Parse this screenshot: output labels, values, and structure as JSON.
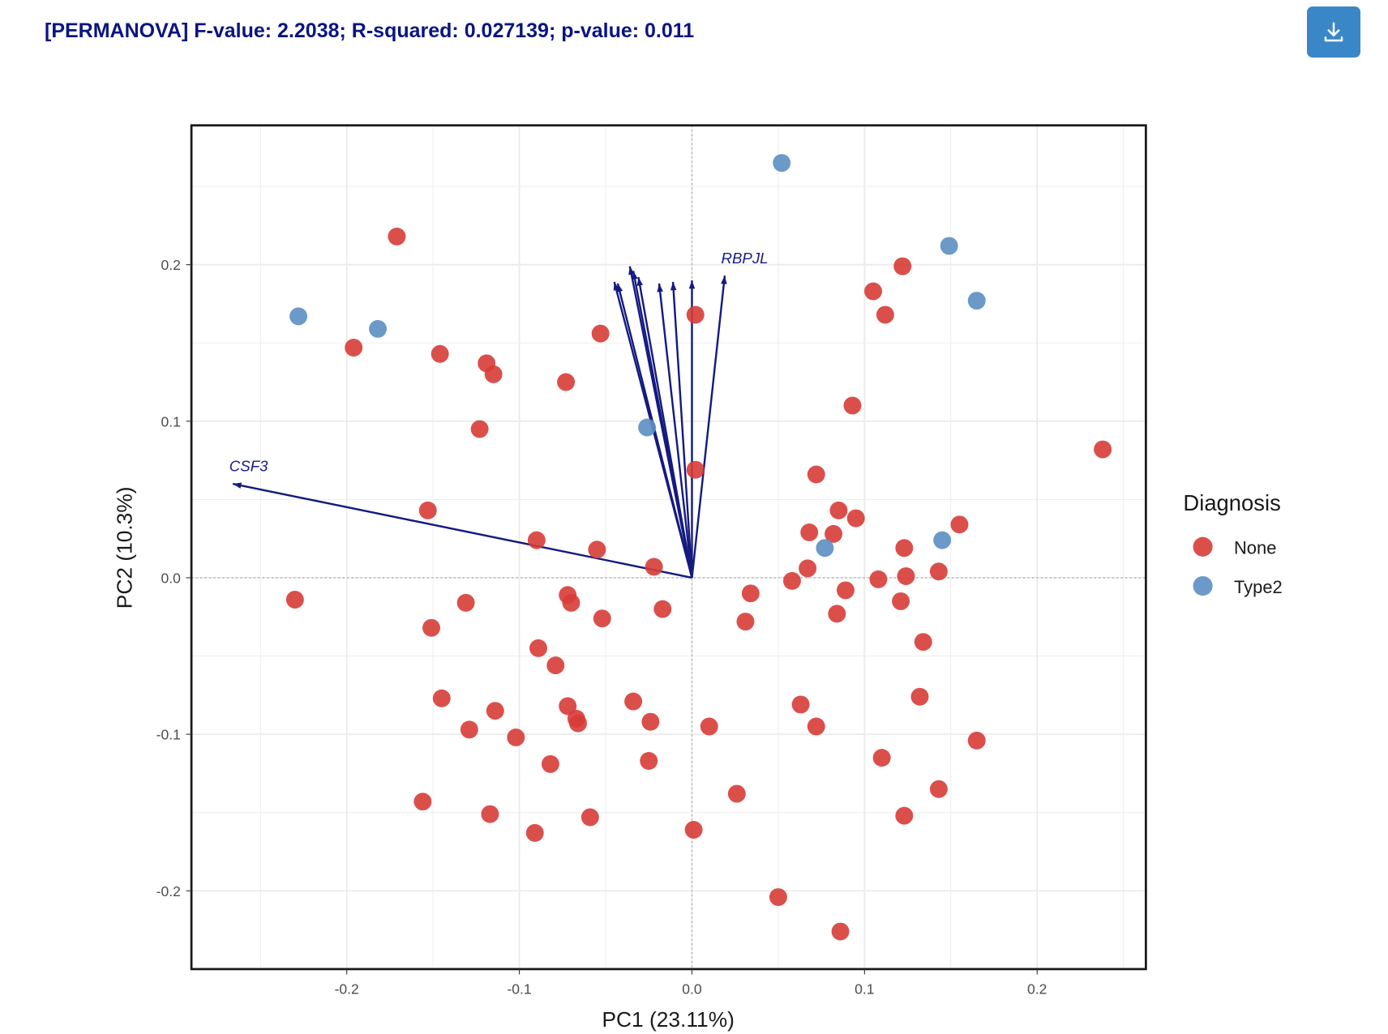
{
  "header": {
    "title": "[PERMANOVA] F-value: 2.2038; R-squared: 0.027139; p-value: 0.011",
    "download_icon": "download-icon"
  },
  "chart_data": {
    "type": "scatter",
    "subtype": "pca-biplot",
    "xlabel": "PC1 (23.11%)",
    "ylabel": "PC2 (10.3%)",
    "xlim": [
      -0.29,
      0.263
    ],
    "ylim": [
      -0.25,
      0.289
    ],
    "xticks": [
      -0.2,
      -0.1,
      0.0,
      0.1,
      0.2
    ],
    "xtick_labels": [
      "-0.2",
      "-0.1",
      "0.0",
      "0.1",
      "0.2"
    ],
    "yticks": [
      -0.2,
      -0.1,
      0.0,
      0.1,
      0.2
    ],
    "ytick_labels": [
      "-0.2",
      "-0.1",
      "0.0",
      "0.1",
      "0.2"
    ],
    "grid": true,
    "legend": {
      "title": "Diagnosis",
      "position": "right"
    },
    "series": [
      {
        "name": "None",
        "color": "#d73c37",
        "points": [
          [
            -0.171,
            0.218
          ],
          [
            -0.196,
            0.147
          ],
          [
            -0.146,
            0.143
          ],
          [
            -0.119,
            0.137
          ],
          [
            -0.115,
            0.13
          ],
          [
            -0.073,
            0.125
          ],
          [
            -0.053,
            0.156
          ],
          [
            0.002,
            0.168
          ],
          [
            -0.123,
            0.095
          ],
          [
            0.002,
            0.069
          ],
          [
            -0.153,
            0.043
          ],
          [
            -0.09,
            0.024
          ],
          [
            -0.055,
            0.018
          ],
          [
            -0.022,
            0.007
          ],
          [
            -0.23,
            -0.014
          ],
          [
            -0.131,
            -0.016
          ],
          [
            -0.151,
            -0.032
          ],
          [
            -0.072,
            -0.011
          ],
          [
            -0.07,
            -0.016
          ],
          [
            -0.052,
            -0.026
          ],
          [
            -0.017,
            -0.02
          ],
          [
            -0.089,
            -0.045
          ],
          [
            -0.079,
            -0.056
          ],
          [
            -0.145,
            -0.077
          ],
          [
            -0.114,
            -0.085
          ],
          [
            -0.129,
            -0.097
          ],
          [
            -0.102,
            -0.102
          ],
          [
            -0.072,
            -0.082
          ],
          [
            -0.067,
            -0.09
          ],
          [
            -0.066,
            -0.093
          ],
          [
            -0.034,
            -0.079
          ],
          [
            -0.024,
            -0.092
          ],
          [
            -0.082,
            -0.119
          ],
          [
            -0.025,
            -0.117
          ],
          [
            0.01,
            -0.095
          ],
          [
            -0.156,
            -0.143
          ],
          [
            -0.117,
            -0.151
          ],
          [
            -0.091,
            -0.163
          ],
          [
            -0.059,
            -0.153
          ],
          [
            0.001,
            -0.161
          ],
          [
            0.026,
            -0.138
          ],
          [
            0.05,
            -0.204
          ],
          [
            0.086,
            -0.226
          ],
          [
            0.034,
            -0.01
          ],
          [
            0.031,
            -0.028
          ],
          [
            0.058,
            -0.002
          ],
          [
            0.067,
            0.006
          ],
          [
            0.068,
            0.029
          ],
          [
            0.082,
            0.028
          ],
          [
            0.072,
            0.066
          ],
          [
            0.085,
            0.043
          ],
          [
            0.095,
            0.038
          ],
          [
            0.093,
            0.11
          ],
          [
            0.089,
            -0.008
          ],
          [
            0.084,
            -0.023
          ],
          [
            0.063,
            -0.081
          ],
          [
            0.072,
            -0.095
          ],
          [
            0.105,
            0.183
          ],
          [
            0.122,
            0.199
          ],
          [
            0.112,
            0.168
          ],
          [
            0.108,
            -0.001
          ],
          [
            0.124,
            0.001
          ],
          [
            0.123,
            0.019
          ],
          [
            0.121,
            -0.015
          ],
          [
            0.143,
            0.004
          ],
          [
            0.155,
            0.034
          ],
          [
            0.134,
            -0.041
          ],
          [
            0.132,
            -0.076
          ],
          [
            0.11,
            -0.115
          ],
          [
            0.123,
            -0.152
          ],
          [
            0.143,
            -0.135
          ],
          [
            0.165,
            -0.104
          ],
          [
            0.238,
            0.082
          ]
        ]
      },
      {
        "name": "Type2",
        "color": "#5b8fc3",
        "points": [
          [
            0.052,
            0.265
          ],
          [
            -0.228,
            0.167
          ],
          [
            -0.182,
            0.159
          ],
          [
            -0.026,
            0.096
          ],
          [
            0.077,
            0.019
          ],
          [
            0.149,
            0.212
          ],
          [
            0.165,
            0.177
          ],
          [
            0.145,
            0.024
          ]
        ]
      }
    ],
    "loadings": {
      "color": "#141a80",
      "vectors": [
        {
          "label": "CSF3",
          "x": -0.266,
          "y": 0.06
        },
        {
          "label": "RBPJL",
          "x": 0.019,
          "y": 0.193
        },
        {
          "label": "",
          "x": -0.045,
          "y": 0.189
        },
        {
          "label": "",
          "x": -0.043,
          "y": 0.188
        },
        {
          "label": "",
          "x": -0.036,
          "y": 0.199
        },
        {
          "label": "",
          "x": -0.034,
          "y": 0.196
        },
        {
          "label": "",
          "x": -0.031,
          "y": 0.192
        },
        {
          "label": "",
          "x": -0.019,
          "y": 0.188
        },
        {
          "label": "",
          "x": -0.011,
          "y": 0.189
        },
        {
          "label": "",
          "x": 0.0,
          "y": 0.19
        }
      ]
    }
  }
}
